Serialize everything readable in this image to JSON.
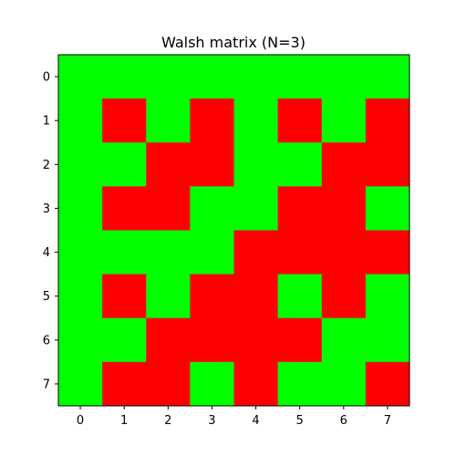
{
  "chart_data": {
    "type": "heatmap",
    "title": "Walsh matrix (N=3)",
    "xlabel": "",
    "ylabel": "",
    "x_ticks": [
      "0",
      "1",
      "2",
      "3",
      "4",
      "5",
      "6",
      "7"
    ],
    "y_ticks": [
      "0",
      "1",
      "2",
      "3",
      "4",
      "5",
      "6",
      "7"
    ],
    "x_range": [
      -0.5,
      7.5
    ],
    "y_range": [
      -0.5,
      7.5
    ],
    "y_inverted": true,
    "grid": false,
    "legend": "none",
    "value_colors": {
      "1": "#00ff00",
      "-1": "#ff0000"
    },
    "matrix": [
      [
        1,
        1,
        1,
        1,
        1,
        1,
        1,
        1
      ],
      [
        1,
        -1,
        1,
        -1,
        1,
        -1,
        1,
        -1
      ],
      [
        1,
        1,
        -1,
        -1,
        1,
        1,
        -1,
        -1
      ],
      [
        1,
        -1,
        -1,
        1,
        1,
        -1,
        -1,
        1
      ],
      [
        1,
        1,
        1,
        1,
        -1,
        -1,
        -1,
        -1
      ],
      [
        1,
        -1,
        1,
        -1,
        -1,
        1,
        -1,
        1
      ],
      [
        1,
        1,
        -1,
        -1,
        -1,
        -1,
        1,
        1
      ],
      [
        1,
        -1,
        -1,
        1,
        -1,
        1,
        1,
        -1
      ]
    ]
  }
}
